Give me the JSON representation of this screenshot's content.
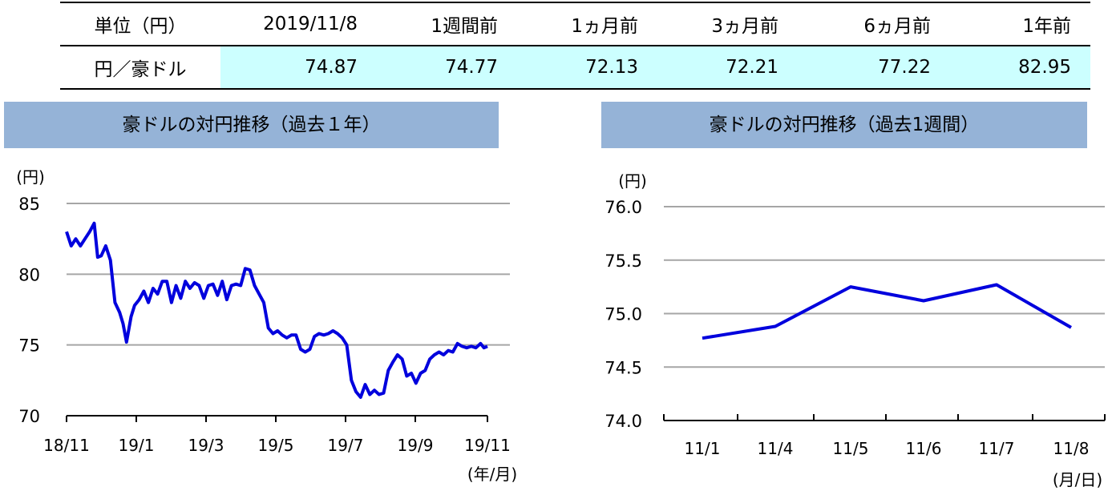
{
  "table": {
    "headers": [
      "単位（円）",
      "2019/11/8",
      "1週間前",
      "1ヵ月前",
      "3ヵ月前",
      "6ヵ月前",
      "1年前"
    ],
    "row_label": "円／豪ドル",
    "values": [
      "74.87",
      "74.77",
      "72.13",
      "72.21",
      "77.22",
      "82.95"
    ]
  },
  "chart_data": [
    {
      "type": "line",
      "title": "豪ドルの対円推移（過去１年）",
      "unit_label": "(円)",
      "xlabel": "(年/月)",
      "x_ticks": [
        "18/11",
        "19/1",
        "19/3",
        "19/5",
        "19/7",
        "19/9",
        "19/11"
      ],
      "y_ticks": [
        "70",
        "75",
        "80",
        "85"
      ],
      "ylim": [
        70,
        85
      ],
      "grid": true,
      "color": "#0000dd",
      "x": [
        "2018-11-08",
        "2018-11-12",
        "2018-11-16",
        "2018-11-20",
        "2018-11-24",
        "2018-11-28",
        "2018-12-02",
        "2018-12-05",
        "2018-12-08",
        "2018-12-12",
        "2018-12-16",
        "2018-12-20",
        "2018-12-24",
        "2018-12-27",
        "2018-12-30",
        "2019-01-03",
        "2019-01-06",
        "2019-01-10",
        "2019-01-14",
        "2019-01-18",
        "2019-01-22",
        "2019-01-26",
        "2019-01-30",
        "2019-02-03",
        "2019-02-07",
        "2019-02-11",
        "2019-02-15",
        "2019-02-19",
        "2019-02-23",
        "2019-02-27",
        "2019-03-03",
        "2019-03-07",
        "2019-03-11",
        "2019-03-15",
        "2019-03-19",
        "2019-03-23",
        "2019-03-27",
        "2019-03-31",
        "2019-04-04",
        "2019-04-08",
        "2019-04-12",
        "2019-04-16",
        "2019-04-20",
        "2019-04-24",
        "2019-04-28",
        "2019-05-02",
        "2019-05-06",
        "2019-05-10",
        "2019-05-14",
        "2019-05-18",
        "2019-05-22",
        "2019-05-26",
        "2019-05-30",
        "2019-06-03",
        "2019-06-07",
        "2019-06-11",
        "2019-06-15",
        "2019-06-19",
        "2019-06-23",
        "2019-06-27",
        "2019-07-01",
        "2019-07-05",
        "2019-07-09",
        "2019-07-13",
        "2019-07-17",
        "2019-07-21",
        "2019-07-25",
        "2019-07-29",
        "2019-08-02",
        "2019-08-06",
        "2019-08-10",
        "2019-08-14",
        "2019-08-18",
        "2019-08-22",
        "2019-08-26",
        "2019-08-30",
        "2019-09-03",
        "2019-09-07",
        "2019-09-11",
        "2019-09-15",
        "2019-09-19",
        "2019-09-23",
        "2019-09-27",
        "2019-10-01",
        "2019-10-05",
        "2019-10-09",
        "2019-10-13",
        "2019-10-17",
        "2019-10-21",
        "2019-10-25",
        "2019-10-29",
        "2019-11-02",
        "2019-11-05",
        "2019-11-08"
      ],
      "values": [
        83.0,
        82.0,
        82.5,
        82.0,
        82.5,
        83.0,
        83.6,
        81.2,
        81.3,
        82.0,
        81.0,
        78.0,
        77.3,
        76.5,
        75.2,
        77.0,
        77.8,
        78.2,
        78.8,
        78.0,
        79.0,
        78.6,
        79.5,
        79.5,
        78.0,
        79.2,
        78.3,
        79.5,
        79.0,
        79.4,
        79.2,
        78.3,
        79.2,
        79.3,
        78.5,
        79.5,
        78.2,
        79.2,
        79.3,
        79.2,
        80.4,
        80.3,
        79.2,
        78.6,
        78.0,
        76.2,
        75.8,
        76.0,
        75.7,
        75.5,
        75.7,
        75.7,
        74.7,
        74.5,
        74.7,
        75.6,
        75.8,
        75.7,
        75.8,
        76.0,
        75.8,
        75.5,
        75.0,
        72.5,
        71.7,
        71.3,
        72.2,
        71.5,
        71.8,
        71.5,
        71.6,
        73.2,
        73.8,
        74.3,
        74.0,
        72.8,
        73.0,
        72.3,
        73.0,
        73.2,
        74.0,
        74.3,
        74.5,
        74.3,
        74.6,
        74.5,
        75.1,
        74.9,
        74.8,
        74.9,
        74.8,
        75.1,
        74.8,
        74.9
      ]
    },
    {
      "type": "line",
      "title": "豪ドルの対円推移（過去1週間）",
      "unit_label": "(円)",
      "xlabel": "(月/日)",
      "categories": [
        "11/1",
        "11/4",
        "11/5",
        "11/6",
        "11/7",
        "11/8"
      ],
      "y_ticks": [
        "74.0",
        "74.5",
        "75.0",
        "75.5",
        "76.0"
      ],
      "ylim": [
        74.0,
        76.0
      ],
      "grid": true,
      "color": "#0000dd",
      "values": [
        74.77,
        74.88,
        75.25,
        75.12,
        75.27,
        74.87
      ]
    }
  ]
}
